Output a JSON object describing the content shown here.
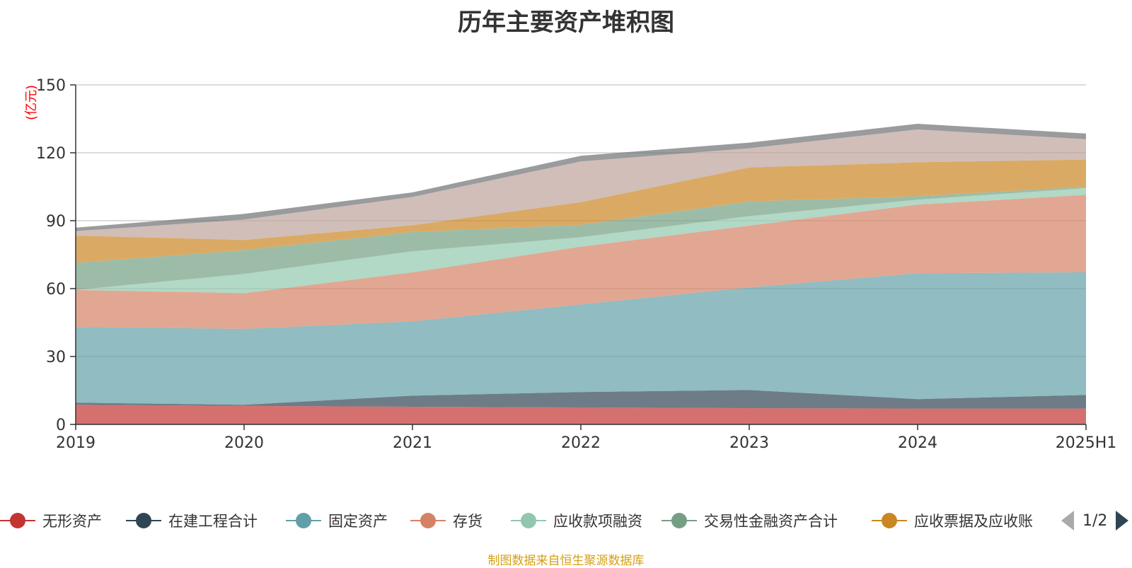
{
  "title": "历年主要资产堆积图",
  "source_note": "制图数据来自恒生聚源数据库",
  "legend_pager": {
    "text": "1/2"
  },
  "chart_data": {
    "type": "area",
    "stacked": true,
    "title": "历年主要资产堆积图",
    "ylabel": "(亿元)",
    "xlabel": "",
    "ylim": [
      0,
      150
    ],
    "yticks": [
      0,
      30,
      60,
      90,
      120,
      150
    ],
    "grid": true,
    "legend_placement": "bottom",
    "categories": [
      "2019",
      "2020",
      "2021",
      "2022",
      "2023",
      "2024",
      "2025H1"
    ],
    "series": [
      {
        "name": "无形资产",
        "color": "#c23531",
        "values": [
          8.7,
          8.2,
          7.8,
          7.5,
          7.2,
          7.0,
          7.0
        ],
        "show_legend": true
      },
      {
        "name": "在建工程合计",
        "color": "#2f4554",
        "values": [
          0.9,
          0.5,
          4.9,
          6.8,
          8.0,
          4.2,
          6.0
        ],
        "show_legend": true
      },
      {
        "name": "固定资产",
        "color": "#61a0a8",
        "values": [
          33.5,
          33.5,
          32.8,
          38.7,
          45.3,
          55.6,
          54.2
        ],
        "show_legend": true
      },
      {
        "name": "存货",
        "color": "#d48265",
        "values": [
          16.3,
          15.8,
          21.7,
          25.5,
          27.3,
          30.3,
          34.2
        ],
        "show_legend": true
      },
      {
        "name": "应收款项融资",
        "color": "#91c7ae",
        "values": [
          0,
          8.5,
          9.3,
          4.2,
          4.2,
          2.2,
          3.0
        ],
        "show_legend": true
      },
      {
        "name": "交易性金融资产合计",
        "color": "#749f83",
        "values": [
          12.0,
          10.5,
          8.5,
          5.5,
          6.5,
          1.5,
          0.6
        ],
        "show_legend": true
      },
      {
        "name": "应收票据及应收账",
        "color": "#ca8622",
        "values": [
          12.0,
          4.5,
          3.0,
          10.0,
          15.0,
          15.0,
          12.0
        ],
        "show_legend": true
      },
      {
        "name": "",
        "color": "#bda29a",
        "values": [
          2.0,
          9.0,
          12.5,
          18.0,
          8.5,
          14.5,
          9.0
        ],
        "show_legend": false
      },
      {
        "name": "",
        "color": "#6e7074",
        "values": [
          1.5,
          2.5,
          2.0,
          2.5,
          2.5,
          2.5,
          2.5
        ],
        "show_legend": false
      }
    ]
  }
}
